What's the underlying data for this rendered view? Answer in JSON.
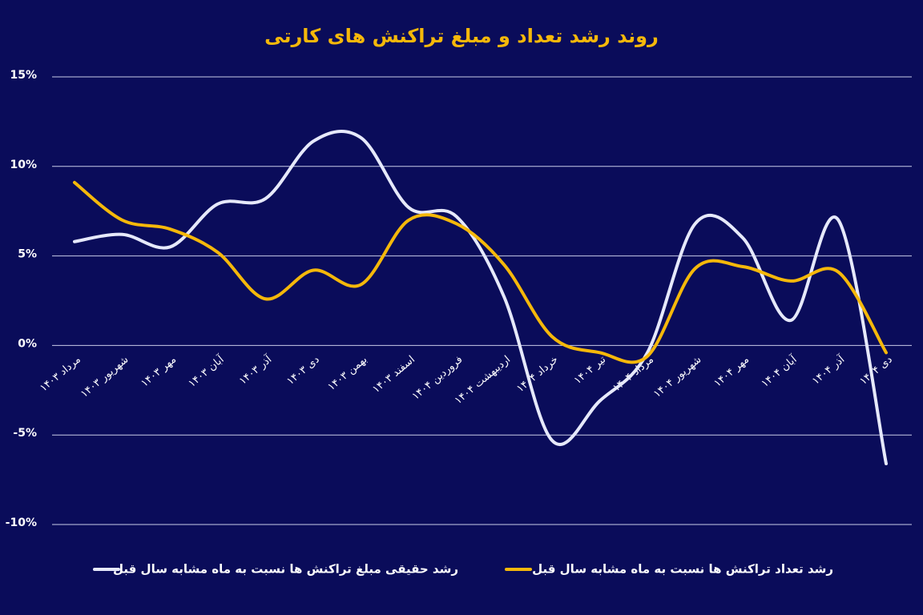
{
  "chart_data": {
    "type": "line",
    "title": "روند رشد تعداد و مبلغ تراکنش های کارتی",
    "categories": [
      "مرداد ۱۴۰۳",
      "شهریور ۱۴۰۳",
      "مهر ۱۴۰۳",
      "آبان ۱۴۰۳",
      "آذر ۱۴۰۳",
      "دی ۱۴۰۳",
      "بهمن ۱۴۰۳",
      "اسفند ۱۴۰۳",
      "فروردین ۱۴۰۴",
      "اردیبهشت ۱۴۰۴",
      "خرداد ۱۴۰۴",
      "تیر ۱۴۰۴",
      "مرداد ۱۴۰۴",
      "شهریور ۱۴۰۴",
      "مهر ۱۴۰۴",
      "آبان ۱۴۰۴",
      "آذر ۱۴۰۴",
      "دی ۱۴۰۴"
    ],
    "series": [
      {
        "name": "رشد حقیقی مبلغ تراکنش ها نسبت به ماه مشابه سال قبل",
        "color": "#e6e9fb",
        "values": [
          5.8,
          6.2,
          5.5,
          7.9,
          8.2,
          11.4,
          11.6,
          7.7,
          7.2,
          2.7,
          -5.3,
          -3.1,
          -0.4,
          6.8,
          6.0,
          1.4,
          7.0,
          -6.6
        ]
      },
      {
        "name": "رشد تعداد تراکنش ها نسبت به ماه مشابه سال قبل",
        "color": "#f5b80a",
        "values": [
          9.1,
          7.0,
          6.5,
          5.2,
          2.6,
          4.2,
          3.4,
          7.0,
          6.8,
          4.5,
          0.5,
          -0.4,
          -0.6,
          4.3,
          4.4,
          3.6,
          4.1,
          -0.4
        ]
      }
    ],
    "ylim": [
      -10,
      15
    ],
    "yticks": [
      {
        "value": -10,
        "label": "-10%"
      },
      {
        "value": -5,
        "label": "-5%"
      },
      {
        "value": 0,
        "label": "0%"
      },
      {
        "value": 5,
        "label": "5%"
      },
      {
        "value": 10,
        "label": "10%"
      },
      {
        "value": 15,
        "label": "15%"
      }
    ],
    "grid": true,
    "legend": "bottom"
  }
}
